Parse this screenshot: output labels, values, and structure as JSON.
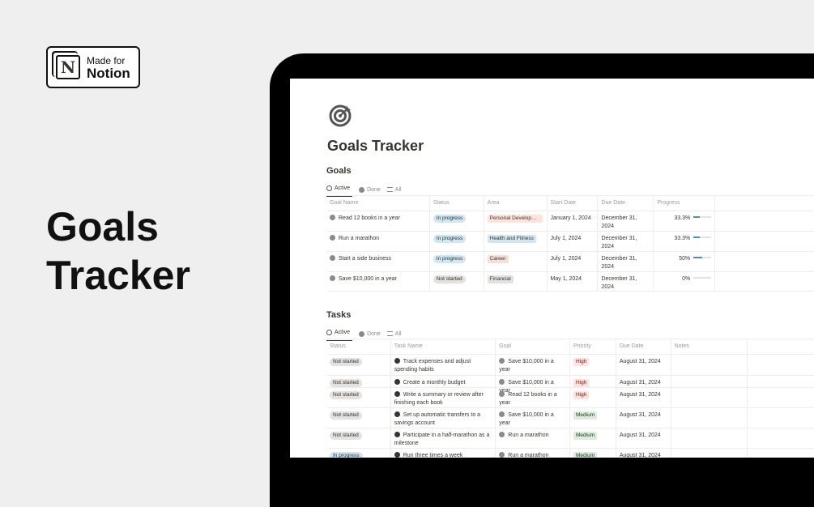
{
  "badge": {
    "line1": "Made for",
    "line2": "Notion",
    "logo_letter": "N"
  },
  "hero": {
    "line1": "Goals",
    "line2": "Tracker"
  },
  "page": {
    "title": "Goals Tracker",
    "icon": "target-icon"
  },
  "goals": {
    "title": "Goals",
    "tabs": [
      "Active",
      "Done",
      "All"
    ],
    "columns": [
      "Goal Name",
      "Status",
      "Area",
      "Start Date",
      "Due Date",
      "Progress"
    ],
    "rows": [
      {
        "name": "Read 12 books in a year",
        "status": "In progress",
        "area": "Personal Developm...",
        "area_color": "#ffe2dd",
        "start": "January 1, 2024",
        "due": "December 31, 2024",
        "progress": "33.3%",
        "pct": 33.3
      },
      {
        "name": "Run a marathon",
        "status": "In progress",
        "area": "Health and Fitness",
        "area_color": "#d3e5ef",
        "start": "July 1, 2024",
        "due": "December 31, 2024",
        "progress": "33.3%",
        "pct": 33.3
      },
      {
        "name": "Start a side business",
        "status": "In progress",
        "area": "Career",
        "area_color": "#f5e0d8",
        "start": "July 1, 2024",
        "due": "December 31, 2024",
        "progress": "50%",
        "pct": 50
      },
      {
        "name": "Save $10,000 in a year",
        "status": "Not started",
        "area": "Financial",
        "area_color": "#e3e2e0",
        "start": "May 1, 2024",
        "due": "December 31, 2024",
        "progress": "0%",
        "pct": 0
      }
    ]
  },
  "tasks": {
    "title": "Tasks",
    "tabs": [
      "Active",
      "Done",
      "All"
    ],
    "columns": [
      "Status",
      "Task Name",
      "Goal",
      "Priority",
      "Due Date",
      "Notes"
    ],
    "rows": [
      {
        "status": "Not started",
        "name": "Track expenses and adjust spending habits",
        "goal": "Save $10,000 in a year",
        "priority": "High",
        "due": "August 31, 2024"
      },
      {
        "status": "Not started",
        "name": "Create a monthly budget",
        "goal": "Save $10,000 in a year",
        "priority": "High",
        "due": "August 31, 2024"
      },
      {
        "status": "Not started",
        "name": "Write a summary or review after finishing each book",
        "goal": "Read 12 books in a year",
        "priority": "High",
        "due": "August 31, 2024"
      },
      {
        "status": "Not started",
        "name": "Set up automatic transfers to a savings account",
        "goal": "Save $10,000 in a year",
        "priority": "Medium",
        "due": "August 31, 2024"
      },
      {
        "status": "Not started",
        "name": "Participate in a half-marathon as a milestone",
        "goal": "Run a marathon",
        "priority": "Medium",
        "due": "August 31, 2024"
      },
      {
        "status": "In progress",
        "name": "Run three times a week",
        "goal": "Run a marathon",
        "priority": "Medium",
        "due": "August 31, 2024"
      }
    ]
  },
  "colors": {
    "high": "#ffe2dd",
    "medium": "#dbeddb",
    "in_progress": "#d3e5ef",
    "not_started": "#e3e2e0"
  }
}
